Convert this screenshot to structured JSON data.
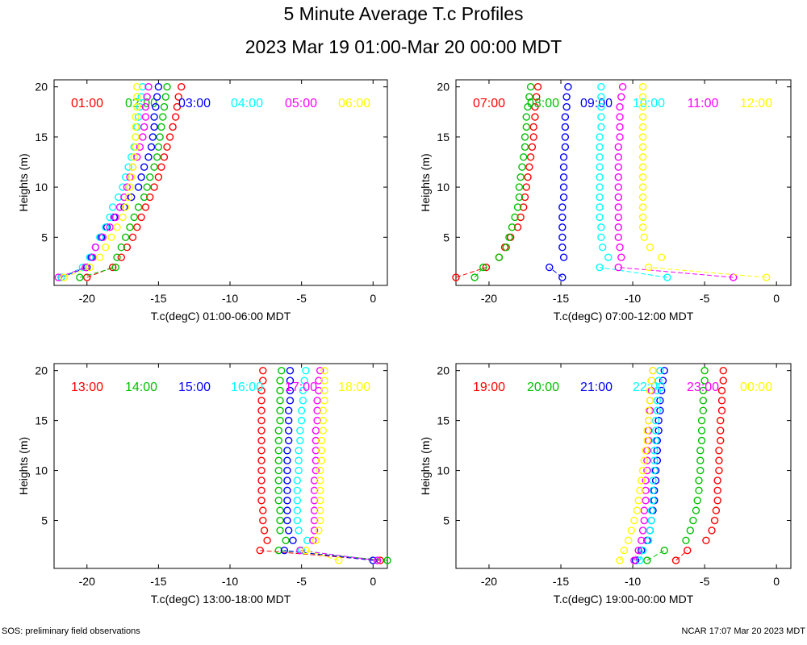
{
  "title": "5 Minute Average T.c Profiles",
  "subtitle": "2023 Mar 19 01:00-Mar 20 00:00 MDT",
  "footer_left": "SOS: preliminary field observations",
  "footer_right": "NCAR 17:07 Mar 20 2023 MDT",
  "colors": [
    "#ff0000",
    "#00c000",
    "#0000ff",
    "#00ffff",
    "#ff00ff",
    "#ffff00"
  ],
  "chart_data": [
    {
      "type": "scatter",
      "xlabel": "T.c(degC) 01:00-06:00 MDT",
      "ylabel": "Heights (m)",
      "xlim": [
        -22.3,
        1
      ],
      "ylim": [
        0.2,
        20.7
      ],
      "xticks": [
        -20,
        -15,
        -10,
        -5,
        0
      ],
      "yticks": [
        5,
        10,
        15,
        20
      ],
      "heights": [
        1,
        2,
        3,
        4,
        5,
        6,
        7,
        8,
        9,
        10,
        11,
        12,
        13,
        14,
        15,
        16,
        17,
        18,
        19,
        20
      ],
      "series": [
        {
          "name": "01:00",
          "values": [
            -20.0,
            -18.2,
            -17.6,
            -17.2,
            -16.8,
            -16.5,
            -16.2,
            -15.9,
            -15.6,
            -15.3,
            -15.0,
            -14.8,
            -14.6,
            -14.4,
            -14.2,
            -14.0,
            -13.8,
            -13.7,
            -13.6,
            -13.4
          ]
        },
        {
          "name": "02:00",
          "values": [
            -20.5,
            -18.0,
            -17.9,
            -17.6,
            -17.3,
            -17.0,
            -16.7,
            -16.4,
            -16.0,
            -15.8,
            -15.6,
            -15.3,
            -15.1,
            -15.0,
            -14.9,
            -14.8,
            -14.7,
            -14.6,
            -14.5,
            -14.4
          ]
        },
        {
          "name": "03:00",
          "values": [
            -21.8,
            -20.0,
            -19.7,
            -19.4,
            -19.0,
            -18.6,
            -18.1,
            -17.4,
            -16.9,
            -16.4,
            -16.2,
            -16.0,
            -15.7,
            -15.5,
            -15.4,
            -15.3,
            -15.3,
            -15.2,
            -15.1,
            -15.0
          ]
        },
        {
          "name": "04:00",
          "values": [
            -21.8,
            -20.3,
            -19.8,
            -19.4,
            -19.1,
            -18.7,
            -18.4,
            -18.2,
            -17.8,
            -17.5,
            -17.3,
            -17.1,
            -16.9,
            -16.7,
            -16.6,
            -16.5,
            -16.4,
            -16.3,
            -16.2,
            -16.1
          ]
        },
        {
          "name": "05:00",
          "values": [
            -22.0,
            -20.1,
            -19.6,
            -19.4,
            -18.9,
            -18.4,
            -18.0,
            -17.7,
            -17.4,
            -17.2,
            -17.0,
            -16.8,
            -16.5,
            -16.3,
            -16.1,
            -16.0,
            -15.9,
            -15.9,
            -15.8,
            -15.7
          ]
        },
        {
          "name": "06:00",
          "values": [
            -21.6,
            -19.8,
            -19.1,
            -18.7,
            -18.3,
            -17.9,
            -17.5,
            -17.3,
            -17.1,
            -17.0,
            -16.9,
            -16.8,
            -16.7,
            -16.6,
            -16.6,
            -16.6,
            -16.6,
            -16.5,
            -16.5,
            -16.5
          ]
        }
      ]
    },
    {
      "type": "scatter",
      "xlabel": "T.c(degC) 07:00-12:00 MDT",
      "ylabel": "Heights (m)",
      "xlim": [
        -22.3,
        1
      ],
      "ylim": [
        0.2,
        20.7
      ],
      "xticks": [
        -20,
        -15,
        -10,
        -5,
        0
      ],
      "yticks": [
        5,
        10,
        15,
        20
      ],
      "heights": [
        1,
        2,
        3,
        4,
        5,
        6,
        7,
        8,
        9,
        10,
        11,
        12,
        13,
        14,
        15,
        16,
        17,
        18,
        19,
        20
      ],
      "series": [
        {
          "name": "07:00",
          "values": [
            -22.3,
            -20.2,
            -19.3,
            -18.9,
            -18.5,
            -18.0,
            -17.8,
            -17.6,
            -17.5,
            -17.4,
            -17.3,
            -17.2,
            -17.1,
            -17.0,
            -16.9,
            -16.9,
            -16.8,
            -16.8,
            -16.7,
            -16.6
          ]
        },
        {
          "name": "08:00",
          "values": [
            -21.0,
            -20.4,
            -19.3,
            -18.8,
            -18.6,
            -18.4,
            -18.2,
            -18.0,
            -17.9,
            -17.9,
            -17.8,
            -17.7,
            -17.6,
            -17.5,
            -17.5,
            -17.4,
            -17.4,
            -17.3,
            -17.2,
            -17.1
          ]
        },
        {
          "name": "09:00",
          "values": [
            -14.9,
            -15.8,
            -14.8,
            -14.9,
            -14.9,
            -14.9,
            -14.9,
            -14.9,
            -14.8,
            -14.8,
            -14.8,
            -14.8,
            -14.8,
            -14.7,
            -14.7,
            -14.7,
            -14.7,
            -14.6,
            -14.6,
            -14.5
          ]
        },
        {
          "name": "10:00",
          "values": [
            -7.6,
            -12.3,
            -11.7,
            -12.1,
            -12.2,
            -12.2,
            -12.3,
            -12.3,
            -12.3,
            -12.3,
            -12.3,
            -12.3,
            -12.3,
            -12.3,
            -12.3,
            -12.2,
            -12.2,
            -12.2,
            -12.2,
            -12.2
          ]
        },
        {
          "name": "11:00",
          "values": [
            -3.0,
            -11.0,
            -10.8,
            -10.9,
            -11.0,
            -11.0,
            -11.0,
            -11.0,
            -11.0,
            -11.0,
            -11.0,
            -11.0,
            -11.0,
            -11.0,
            -10.9,
            -10.9,
            -10.9,
            -10.9,
            -10.8,
            -10.7
          ]
        },
        {
          "name": "12:00",
          "values": [
            -0.7,
            -8.9,
            -8.0,
            -8.8,
            -9.2,
            -9.3,
            -9.3,
            -9.3,
            -9.3,
            -9.3,
            -9.3,
            -9.3,
            -9.3,
            -9.3,
            -9.3,
            -9.3,
            -9.3,
            -9.3,
            -9.3,
            -9.3
          ]
        }
      ]
    },
    {
      "type": "scatter",
      "xlabel": "T.c(degC) 13:00-18:00 MDT",
      "ylabel": "Heights (m)",
      "xlim": [
        -22.3,
        1
      ],
      "ylim": [
        0.2,
        20.7
      ],
      "xticks": [
        -20,
        -15,
        -10,
        -5,
        0
      ],
      "yticks": [
        5,
        10,
        15,
        20
      ],
      "heights": [
        1,
        2,
        3,
        4,
        5,
        6,
        7,
        8,
        9,
        10,
        11,
        12,
        13,
        14,
        15,
        16,
        17,
        18,
        19,
        20
      ],
      "series": [
        {
          "name": "13:00",
          "values": [
            0.5,
            -7.9,
            -7.4,
            -7.6,
            -7.7,
            -7.7,
            -7.8,
            -7.8,
            -7.8,
            -7.8,
            -7.8,
            -7.8,
            -7.8,
            -7.8,
            -7.8,
            -7.8,
            -7.8,
            -7.8,
            -7.7,
            -7.7
          ]
        },
        {
          "name": "14:00",
          "values": [
            1.0,
            -6.6,
            -6.1,
            -6.5,
            -6.5,
            -6.5,
            -6.6,
            -6.6,
            -6.6,
            -6.6,
            -6.6,
            -6.6,
            -6.6,
            -6.6,
            -6.5,
            -6.5,
            -6.5,
            -6.5,
            -6.5,
            -6.4
          ]
        },
        {
          "name": "15:00",
          "values": [
            0.0,
            -6.2,
            -5.6,
            -5.9,
            -6.0,
            -6.0,
            -6.0,
            -6.0,
            -6.0,
            -6.0,
            -6.0,
            -6.0,
            -5.9,
            -5.9,
            -5.9,
            -5.9,
            -5.8,
            -5.8,
            -5.8,
            -5.8
          ]
        },
        {
          "name": "16:00",
          "values": [
            0.3,
            -5.0,
            -4.6,
            -5.2,
            -5.3,
            -5.3,
            -5.3,
            -5.3,
            -5.3,
            -5.2,
            -5.2,
            -5.2,
            -5.1,
            -5.1,
            -5.0,
            -5.0,
            -4.9,
            -4.9,
            -4.8,
            -4.7
          ]
        },
        {
          "name": "17:00",
          "values": [
            0.3,
            -5.1,
            -4.2,
            -4.1,
            -4.1,
            -4.1,
            -4.1,
            -4.1,
            -4.1,
            -4.0,
            -4.0,
            -4.0,
            -4.0,
            -4.0,
            -3.9,
            -3.9,
            -3.9,
            -3.8,
            -3.8,
            -3.7
          ]
        },
        {
          "name": "18:00",
          "values": [
            -2.4,
            -4.7,
            -4.0,
            -3.8,
            -3.7,
            -3.7,
            -3.7,
            -3.7,
            -3.7,
            -3.7,
            -3.6,
            -3.6,
            -3.6,
            -3.5,
            -3.5,
            -3.5,
            -3.4,
            -3.4,
            -3.4,
            -3.4
          ]
        }
      ]
    },
    {
      "type": "scatter",
      "xlabel": "T.c(degC) 19:00-00:00 MDT",
      "ylabel": "Heights (m)",
      "xlim": [
        -22.3,
        1
      ],
      "ylim": [
        0.2,
        20.7
      ],
      "xticks": [
        -20,
        -15,
        -10,
        -5,
        0
      ],
      "yticks": [
        5,
        10,
        15,
        20
      ],
      "heights": [
        1,
        2,
        3,
        4,
        5,
        6,
        7,
        8,
        9,
        10,
        11,
        12,
        13,
        14,
        15,
        16,
        17,
        18,
        19,
        20
      ],
      "series": [
        {
          "name": "19:00",
          "values": [
            -7.0,
            -6.2,
            -4.9,
            -4.5,
            -4.3,
            -4.2,
            -4.1,
            -4.1,
            -4.1,
            -4.0,
            -4.0,
            -4.0,
            -3.9,
            -3.9,
            -3.9,
            -3.8,
            -3.8,
            -3.8,
            -3.7,
            -3.7
          ]
        },
        {
          "name": "20:00",
          "values": [
            -9.0,
            -7.8,
            -6.3,
            -6.0,
            -5.8,
            -5.6,
            -5.5,
            -5.4,
            -5.4,
            -5.3,
            -5.3,
            -5.3,
            -5.2,
            -5.2,
            -5.2,
            -5.1,
            -5.1,
            -5.1,
            -5.0,
            -5.0
          ]
        },
        {
          "name": "21:00",
          "values": [
            -9.8,
            -9.4,
            -9.0,
            -8.8,
            -8.7,
            -8.6,
            -8.5,
            -8.5,
            -8.4,
            -8.4,
            -8.3,
            -8.3,
            -8.3,
            -8.2,
            -8.2,
            -8.1,
            -8.1,
            -8.0,
            -7.9,
            -7.8
          ]
        },
        {
          "name": "22:00",
          "values": [
            -9.5,
            -9.3,
            -8.9,
            -8.8,
            -8.7,
            -8.7,
            -8.6,
            -8.6,
            -8.6,
            -8.5,
            -8.5,
            -8.5,
            -8.4,
            -8.4,
            -8.4,
            -8.3,
            -8.3,
            -8.3,
            -8.2,
            -8.1
          ]
        },
        {
          "name": "23:00",
          "values": [
            -9.9,
            -9.6,
            -9.4,
            -9.3,
            -9.2,
            -9.2,
            -9.1,
            -9.1,
            -9.1,
            -9.0,
            -9.0,
            -9.0,
            -8.9,
            -8.9,
            -8.9,
            -8.8,
            -8.8,
            -8.7,
            -8.7,
            -8.6
          ]
        },
        {
          "name": "00:00",
          "values": [
            -10.9,
            -10.6,
            -10.3,
            -10.1,
            -9.9,
            -9.7,
            -9.6,
            -9.5,
            -9.4,
            -9.3,
            -9.2,
            -9.1,
            -9.0,
            -9.0,
            -8.9,
            -8.9,
            -8.8,
            -8.8,
            -8.7,
            -8.6
          ]
        }
      ]
    }
  ]
}
